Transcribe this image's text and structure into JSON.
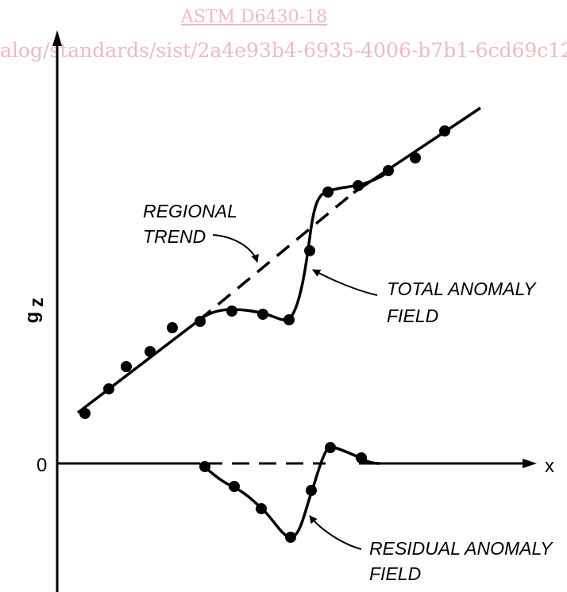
{
  "watermark": {
    "title": "ASTM D6430-18",
    "url": "alog/standards/sist/2a4e93b4-6935-4006-b7b1-6cd69c12",
    "color": "#f4b8c0"
  },
  "axes": {
    "y_label_main": "g",
    "y_label_sub": "z",
    "x_label": "x",
    "zero_label": "0"
  },
  "labels": {
    "regional_trend": [
      "REGIONAL",
      "TREND"
    ],
    "total_anomaly": [
      "TOTAL ANOMALY",
      "FIELD"
    ],
    "residual_anomaly": [
      "RESIDUAL ANOMALY",
      "FIELD"
    ]
  }
}
